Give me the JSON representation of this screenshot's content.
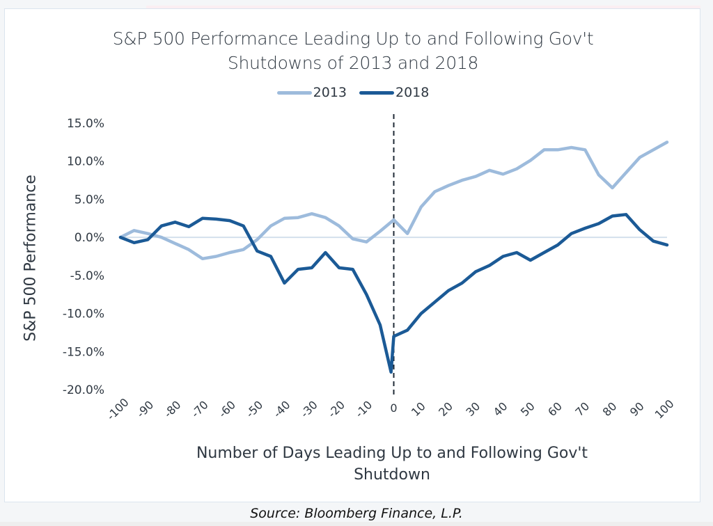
{
  "chart_data": {
    "type": "line",
    "title": "S&P 500 Performance Leading Up to and Following Gov't Shutdowns of 2013 and 2018",
    "title_lines": [
      "S&P 500 Performance Leading Up to and Following Gov't",
      "Shutdowns of 2013 and 2018"
    ],
    "xlabel_lines": [
      "Number of Days Leading Up to and Following Gov't",
      "Shutdown"
    ],
    "ylabel": "S&P 500 Performance",
    "xlim": [
      -100,
      100
    ],
    "ylim": [
      -20,
      15
    ],
    "x_ticks": [
      -100,
      -90,
      -80,
      -70,
      -60,
      -50,
      -40,
      -30,
      -20,
      -10,
      0,
      10,
      20,
      30,
      40,
      50,
      60,
      70,
      80,
      90,
      100
    ],
    "x_tick_labels": [
      "-100",
      "-90",
      "-80",
      "-70",
      "-60",
      "-50",
      "-40",
      "-30",
      "-20",
      "-10",
      "0",
      "10",
      "20",
      "30",
      "40",
      "50",
      "60",
      "70",
      "80",
      "90",
      "100"
    ],
    "y_ticks": [
      15,
      10,
      5,
      0,
      -5,
      -10,
      -15,
      -20
    ],
    "y_tick_labels": [
      "15.0%",
      "10.0%",
      "5.0%",
      "0.0%",
      "-5.0%",
      "-10.0%",
      "-15.0%",
      "-20.0%"
    ],
    "grid": false,
    "zero_line": true,
    "reference_line": {
      "x": 0,
      "style": "dashed",
      "color": "#1f2a36"
    },
    "legend_position": "top",
    "series": [
      {
        "name": "2013",
        "color": "#9dbbdc",
        "x": [
          -100,
          -95,
          -90,
          -85,
          -80,
          -75,
          -70,
          -65,
          -60,
          -55,
          -50,
          -45,
          -40,
          -35,
          -30,
          -25,
          -20,
          -15,
          -10,
          -5,
          0,
          5,
          10,
          15,
          20,
          25,
          30,
          35,
          40,
          45,
          50,
          55,
          60,
          65,
          70,
          75,
          80,
          85,
          90,
          95,
          100
        ],
        "values": [
          0.0,
          0.9,
          0.5,
          0.0,
          -0.8,
          -1.6,
          -2.8,
          -2.5,
          -2.0,
          -1.6,
          -0.3,
          1.5,
          2.5,
          2.6,
          3.1,
          2.6,
          1.5,
          -0.2,
          -0.6,
          0.8,
          2.3,
          0.5,
          4.0,
          6.0,
          6.8,
          7.5,
          8.0,
          8.8,
          8.3,
          9.0,
          10.1,
          11.5,
          11.5,
          11.8,
          11.5,
          8.2,
          6.5,
          8.5,
          10.5,
          11.5,
          12.5
        ]
      },
      {
        "name": "2018",
        "color": "#1b5a96",
        "x": [
          -100,
          -95,
          -90,
          -85,
          -80,
          -75,
          -70,
          -65,
          -60,
          -55,
          -50,
          -45,
          -40,
          -35,
          -30,
          -25,
          -20,
          -15,
          -10,
          -5,
          -1,
          0,
          5,
          10,
          15,
          20,
          25,
          30,
          35,
          40,
          45,
          50,
          55,
          60,
          65,
          70,
          75,
          80,
          85,
          90,
          95,
          100
        ],
        "values": [
          0.0,
          -0.7,
          -0.3,
          1.5,
          2.0,
          1.4,
          2.5,
          2.4,
          2.2,
          1.5,
          -1.8,
          -2.5,
          -6.0,
          -4.2,
          -4.0,
          -2.0,
          -4.0,
          -4.2,
          -7.5,
          -11.5,
          -17.7,
          -13.0,
          -12.2,
          -10.0,
          -8.5,
          -7.0,
          -6.0,
          -4.5,
          -3.7,
          -2.5,
          -2.0,
          -3.0,
          -2.0,
          -1.0,
          0.5,
          1.2,
          1.8,
          2.8,
          3.0,
          1.0,
          -0.5,
          -1.0
        ]
      }
    ]
  },
  "legend": [
    {
      "label": "2013",
      "color": "#9dbbdc"
    },
    {
      "label": "2018",
      "color": "#1b5a96"
    }
  ],
  "source": "Source: Bloomberg Finance, L.P."
}
